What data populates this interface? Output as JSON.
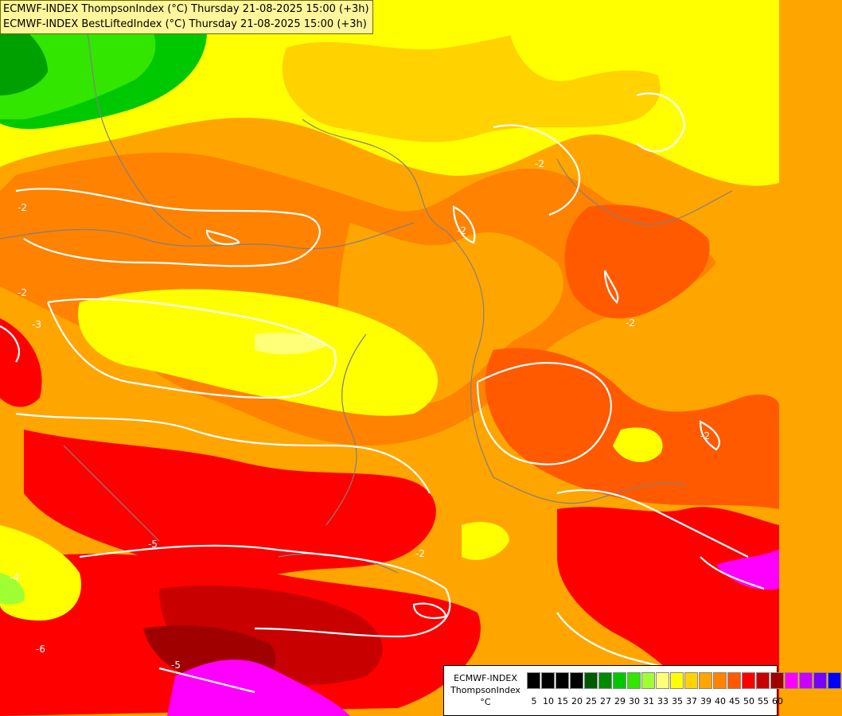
{
  "title": {
    "line1": "ECMWF-INDEX ThompsonIndex (°C) Thursday 21-08-2025 15:00 (+3h)",
    "line2": "ECMWF-INDEX BestLiftedIndex (°C) Thursday 21-08-2025 15:00 (+3h)"
  },
  "legend": {
    "line1": "ECMWF-INDEX",
    "line2": "ThompsonIndex",
    "line3": "°C",
    "labels": [
      "5",
      "10",
      "15",
      "20",
      "25",
      "27",
      "29",
      "30",
      "31",
      "33",
      "35",
      "37",
      "39",
      "40",
      "45",
      "50",
      "55",
      "60"
    ],
    "colors": [
      "#000000",
      "#000000",
      "#000000",
      "#000000",
      "#005a00",
      "#008c00",
      "#00c800",
      "#32e600",
      "#a0ff32",
      "#ffff78",
      "#ffff00",
      "#ffd200",
      "#ffa500",
      "#ff8200",
      "#ff5a00",
      "#ff0000",
      "#c80000",
      "#a00000",
      "#ff00ff",
      "#c800ff",
      "#7800ff",
      "#0000ff"
    ]
  },
  "contour_labels": [
    "-2",
    "-2",
    "-2",
    "-2",
    "-3",
    "-4",
    "-5",
    "-5",
    "-6",
    "-2",
    "-2",
    "-2"
  ],
  "colors": {
    "yellow": "#ffff00",
    "light_yellow": "#ffff78",
    "gold": "#ffd200",
    "orange": "#ffa500",
    "dark_orange": "#ff8200",
    "red_orange": "#ff5a00",
    "red": "#ff0000",
    "dark_red": "#c80000",
    "maroon": "#a00000",
    "magenta": "#ff00ff",
    "green": "#32e600",
    "light_green": "#a0ff32",
    "dark_green": "#00c800"
  }
}
